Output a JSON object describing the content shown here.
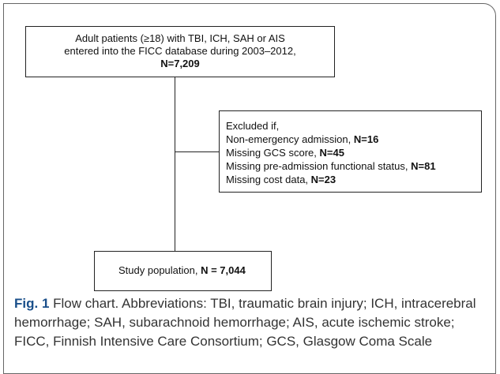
{
  "nodes": [
    {
      "lines": [
        "Adult patients (≥18) with TBI, ICH, SAH or AIS",
        "entered into the FICC database during 2003–2012,"
      ],
      "count": "N=7,209"
    },
    {
      "heading": "Excluded if,",
      "items": [
        {
          "label": "Non-emergency admission,",
          "count": "N=16"
        },
        {
          "label": "Missing GCS score,",
          "count": "N=45"
        },
        {
          "label": "Missing pre-admission functional status,",
          "count": "N=81"
        },
        {
          "label": "Missing cost data,",
          "count": "N=23"
        }
      ]
    },
    {
      "label": "Study population,",
      "count": "N = 7,044"
    }
  ],
  "caption": {
    "label": "Fig. 1",
    "text": "Flow chart. Abbreviations: TBI, traumatic brain injury; ICH, intracerebral hemorrhage; SAH, subarachnoid hemorrhage; AIS, acute ischemic stroke; FICC, Finnish Intensive Care Consortium; GCS, Glasgow Coma Scale"
  }
}
